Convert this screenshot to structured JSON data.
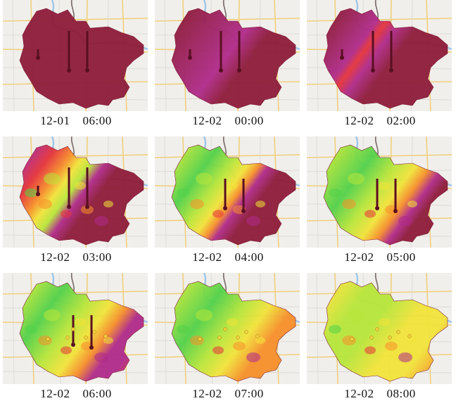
{
  "panels": [
    {
      "date": "12-01",
      "time": "06:00",
      "stage": 0
    },
    {
      "date": "12-02",
      "time": "00:00",
      "stage": 1
    },
    {
      "date": "12-02",
      "time": "02:00",
      "stage": 2
    },
    {
      "date": "12-02",
      "time": "03:00",
      "stage": 3
    },
    {
      "date": "12-02",
      "time": "04:00",
      "stage": 4
    },
    {
      "date": "12-02",
      "time": "05:00",
      "stage": 5
    },
    {
      "date": "12-02",
      "time": "06:00",
      "stage": 6
    },
    {
      "date": "12-02",
      "time": "07:00",
      "stage": 7
    },
    {
      "date": "12-02",
      "time": "08:00",
      "stage": 8
    }
  ],
  "colors": {
    "heavy": "#8e1c3a",
    "magenta": "#b02a8a",
    "red": "#e5333a",
    "orange": "#f7902b",
    "yellow": "#f2e43a",
    "lime": "#b8e63a",
    "green": "#52d14a",
    "river": "#9fc6e8",
    "road": "#f0d07a",
    "basemap": "#f1efec"
  },
  "icons": {
    "station": "monitoring-tower-icon"
  }
}
